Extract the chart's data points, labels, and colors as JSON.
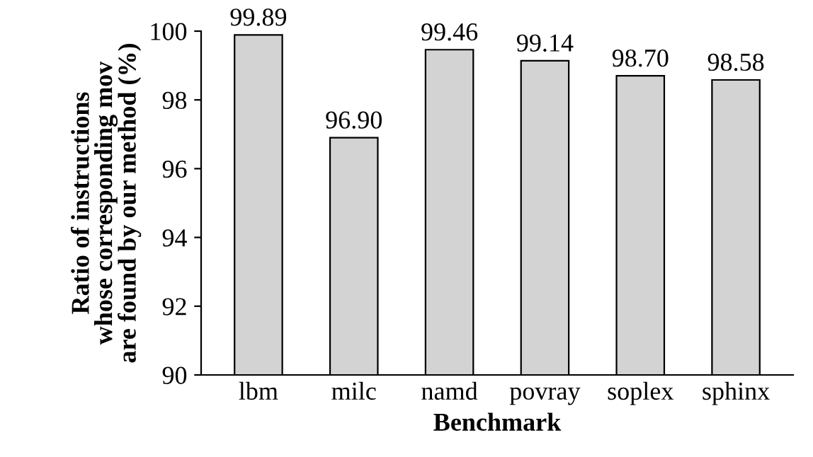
{
  "chart_data": {
    "type": "bar",
    "xlabel": "Benchmark",
    "ylabel": "Ratio of instructions\nwhose corresponding mov\nare found by our method (%)",
    "categories": [
      "lbm",
      "milc",
      "namd",
      "povray",
      "soplex",
      "sphinx"
    ],
    "values": [
      99.89,
      96.9,
      99.46,
      99.14,
      98.7,
      98.58
    ],
    "value_labels": [
      "99.89",
      "96.90",
      "99.46",
      "99.14",
      "98.70",
      "98.58"
    ],
    "color": "#d3d3d3",
    "ylim": [
      90,
      100
    ],
    "yticks": [
      90,
      92,
      94,
      96,
      98,
      100
    ],
    "grid": false,
    "legend": false
  }
}
